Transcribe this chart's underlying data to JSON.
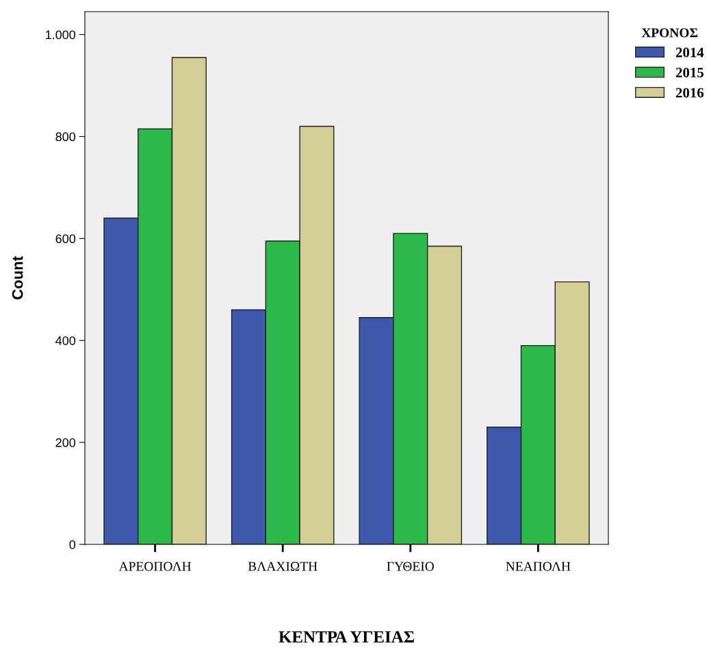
{
  "chart_data": {
    "type": "bar",
    "xlabel": "ΚΕΝΤΡΑ ΥΓΕΙΑΣ",
    "ylabel": "Count",
    "legend_title": "ΧΡΟΝΟΣ",
    "legend": "top right",
    "categories": [
      "ΑΡΕΟΠΟΛΗ",
      "ΒΛΑΧΙΩΤΗ",
      "ΓΥΘΕΙΟ",
      "ΝΕΑΠΟΛΗ"
    ],
    "series": [
      {
        "name": "2014",
        "color": "#3e58ac",
        "values": [
          640,
          460,
          445,
          230
        ]
      },
      {
        "name": "2015",
        "color": "#2db84a",
        "values": [
          815,
          595,
          610,
          390
        ]
      },
      {
        "name": "2016",
        "color": "#d4cf97",
        "values": [
          955,
          820,
          585,
          515
        ]
      }
    ],
    "ylim": [
      0,
      1045
    ],
    "yticks": [
      0,
      200,
      400,
      600,
      800,
      {
        "value": 1000,
        "label": "1.000"
      }
    ],
    "grid": false
  }
}
